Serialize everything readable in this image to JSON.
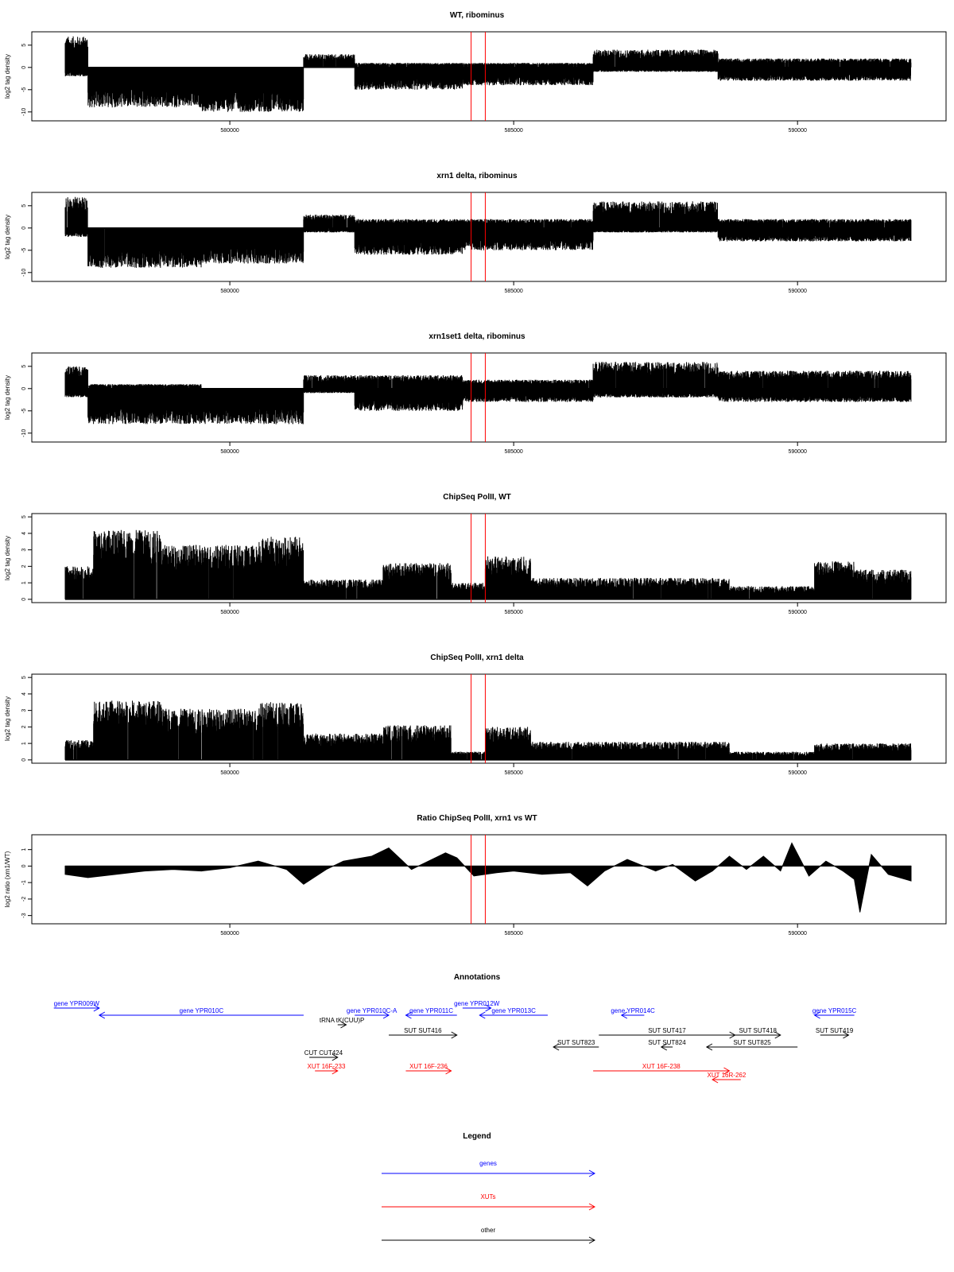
{
  "colors": {
    "genes": "#0000ff",
    "XUTs": "#ff0000",
    "other": "#000000",
    "marker": "#ff0000"
  },
  "genome_range": [
    577000,
    592000
  ],
  "marker_positions": [
    584250,
    584500
  ],
  "chart_data": [
    {
      "type": "bar",
      "title": "WT, ribominus",
      "ylabel": "log2 tag density",
      "ylim": [
        -12,
        8
      ],
      "yticks": [
        5,
        0,
        -5,
        -10
      ],
      "xlim": [
        577100,
        592000
      ],
      "xticks": [
        580000,
        585000,
        590000
      ],
      "profile": [
        {
          "x0": 577100,
          "x1": 577500,
          "hi": 7,
          "lo": -2
        },
        {
          "x0": 577500,
          "x1": 579500,
          "hi": 0,
          "lo": -9
        },
        {
          "x0": 579500,
          "x1": 581300,
          "hi": 0,
          "lo": -10
        },
        {
          "x0": 581300,
          "x1": 582200,
          "hi": 3,
          "lo": 0
        },
        {
          "x0": 582200,
          "x1": 584100,
          "hi": 1,
          "lo": -5
        },
        {
          "x0": 584100,
          "x1": 586400,
          "hi": 1,
          "lo": -4
        },
        {
          "x0": 586400,
          "x1": 588600,
          "hi": 4,
          "lo": -1
        },
        {
          "x0": 588600,
          "x1": 592000,
          "hi": 2,
          "lo": -3
        }
      ]
    },
    {
      "type": "bar",
      "title": "xrn1 delta, ribominus",
      "ylabel": "log2 tag density",
      "ylim": [
        -12,
        8
      ],
      "yticks": [
        5,
        0,
        -5,
        -10
      ],
      "xlim": [
        577100,
        592000
      ],
      "xticks": [
        580000,
        585000,
        590000
      ],
      "profile": [
        {
          "x0": 577100,
          "x1": 577500,
          "hi": 7,
          "lo": -2
        },
        {
          "x0": 577500,
          "x1": 579500,
          "hi": 0,
          "lo": -9
        },
        {
          "x0": 579500,
          "x1": 581300,
          "hi": 0,
          "lo": -8
        },
        {
          "x0": 581300,
          "x1": 582200,
          "hi": 3,
          "lo": -1
        },
        {
          "x0": 582200,
          "x1": 584100,
          "hi": 2,
          "lo": -6
        },
        {
          "x0": 584100,
          "x1": 586400,
          "hi": 2,
          "lo": -5
        },
        {
          "x0": 586400,
          "x1": 588600,
          "hi": 6,
          "lo": -1
        },
        {
          "x0": 588600,
          "x1": 592000,
          "hi": 2,
          "lo": -3
        }
      ]
    },
    {
      "type": "bar",
      "title": "xrn1set1 delta, ribominus",
      "ylabel": "log2 tag density",
      "ylim": [
        -12,
        8
      ],
      "yticks": [
        5,
        0,
        -5,
        -10
      ],
      "xlim": [
        577100,
        592000
      ],
      "xticks": [
        580000,
        585000,
        590000
      ],
      "profile": [
        {
          "x0": 577100,
          "x1": 577500,
          "hi": 5,
          "lo": -2
        },
        {
          "x0": 577500,
          "x1": 579500,
          "hi": 1,
          "lo": -8
        },
        {
          "x0": 579500,
          "x1": 581300,
          "hi": 0,
          "lo": -8
        },
        {
          "x0": 581300,
          "x1": 582200,
          "hi": 3,
          "lo": -1
        },
        {
          "x0": 582200,
          "x1": 584100,
          "hi": 3,
          "lo": -5
        },
        {
          "x0": 584100,
          "x1": 586400,
          "hi": 2,
          "lo": -3
        },
        {
          "x0": 586400,
          "x1": 588600,
          "hi": 6,
          "lo": -2
        },
        {
          "x0": 588600,
          "x1": 592000,
          "hi": 4,
          "lo": -3
        }
      ]
    },
    {
      "type": "bar",
      "title": "ChipSeq PolII, WT",
      "ylabel": "log2 tag density",
      "ylim": [
        -0.2,
        5.2
      ],
      "yticks": [
        0,
        1,
        2,
        3,
        4,
        5
      ],
      "xlim": [
        577100,
        592000
      ],
      "xticks": [
        580000,
        585000,
        590000
      ],
      "profile": [
        {
          "x0": 577100,
          "x1": 577600,
          "hi": 2,
          "lo": 0
        },
        {
          "x0": 577600,
          "x1": 578800,
          "hi": 4.2,
          "lo": 0
        },
        {
          "x0": 578800,
          "x1": 580500,
          "hi": 3.3,
          "lo": 0
        },
        {
          "x0": 580500,
          "x1": 581300,
          "hi": 3.8,
          "lo": 0
        },
        {
          "x0": 581300,
          "x1": 582700,
          "hi": 1.2,
          "lo": 0
        },
        {
          "x0": 582700,
          "x1": 583900,
          "hi": 2.2,
          "lo": 0
        },
        {
          "x0": 583900,
          "x1": 584500,
          "hi": 1,
          "lo": 0
        },
        {
          "x0": 584500,
          "x1": 585300,
          "hi": 2.6,
          "lo": 0
        },
        {
          "x0": 585300,
          "x1": 588800,
          "hi": 1.3,
          "lo": 0
        },
        {
          "x0": 588800,
          "x1": 590300,
          "hi": 0.8,
          "lo": 0
        },
        {
          "x0": 590300,
          "x1": 591000,
          "hi": 2.3,
          "lo": 0
        },
        {
          "x0": 591000,
          "x1": 592000,
          "hi": 1.8,
          "lo": 0
        }
      ]
    },
    {
      "type": "bar",
      "title": "ChipSeq PolII, xrn1 delta",
      "ylabel": "log2 tag density",
      "ylim": [
        -0.2,
        5.2
      ],
      "yticks": [
        0,
        1,
        2,
        3,
        4,
        5
      ],
      "xlim": [
        577100,
        592000
      ],
      "xticks": [
        580000,
        585000,
        590000
      ],
      "profile": [
        {
          "x0": 577100,
          "x1": 577600,
          "hi": 1.2,
          "lo": 0
        },
        {
          "x0": 577600,
          "x1": 578800,
          "hi": 3.6,
          "lo": 0
        },
        {
          "x0": 578800,
          "x1": 580500,
          "hi": 3.1,
          "lo": 0
        },
        {
          "x0": 580500,
          "x1": 581300,
          "hi": 3.5,
          "lo": 0
        },
        {
          "x0": 581300,
          "x1": 582700,
          "hi": 1.6,
          "lo": 0
        },
        {
          "x0": 582700,
          "x1": 583900,
          "hi": 2.1,
          "lo": 0
        },
        {
          "x0": 583900,
          "x1": 584500,
          "hi": 0.5,
          "lo": 0
        },
        {
          "x0": 584500,
          "x1": 585300,
          "hi": 2,
          "lo": 0
        },
        {
          "x0": 585300,
          "x1": 588800,
          "hi": 1.1,
          "lo": 0
        },
        {
          "x0": 588800,
          "x1": 590300,
          "hi": 0.5,
          "lo": 0
        },
        {
          "x0": 590300,
          "x1": 591000,
          "hi": 1,
          "lo": 0
        },
        {
          "x0": 591000,
          "x1": 592000,
          "hi": 1,
          "lo": 0
        }
      ]
    },
    {
      "type": "area",
      "title": "Ratio ChipSeq PolII, xrn1 vs WT",
      "ylabel": "log2 ratio (xrn1/WT)",
      "ylim": [
        -3.5,
        1.9
      ],
      "yticks": [
        1,
        0,
        -1,
        -2,
        -3
      ],
      "xlim": [
        577100,
        592000
      ],
      "xticks": [
        580000,
        585000,
        590000
      ],
      "x": [
        577100,
        577500,
        578000,
        578500,
        579000,
        579500,
        580000,
        580500,
        581000,
        581300,
        581700,
        582000,
        582500,
        582800,
        583200,
        583500,
        583800,
        584000,
        584300,
        584700,
        585000,
        585500,
        586000,
        586300,
        586600,
        587000,
        587500,
        587800,
        588200,
        588500,
        588800,
        589100,
        589400,
        589700,
        589900,
        590200,
        590500,
        590800,
        591000,
        591100,
        591300,
        591600,
        592000
      ],
      "y": [
        -0.5,
        -0.7,
        -0.5,
        -0.3,
        -0.2,
        -0.3,
        -0.1,
        0.3,
        -0.2,
        -1.1,
        -0.2,
        0.3,
        0.6,
        1.1,
        -0.2,
        0.3,
        0.8,
        0.5,
        -0.6,
        -0.4,
        -0.3,
        -0.5,
        -0.4,
        -1.2,
        -0.3,
        0.4,
        -0.3,
        0.1,
        -0.9,
        -0.3,
        0.6,
        -0.2,
        0.6,
        -0.3,
        1.4,
        -0.6,
        0.3,
        -0.3,
        -0.8,
        -2.8,
        0.7,
        -0.5,
        -0.9
      ]
    }
  ],
  "annotations": {
    "title": "Annotations",
    "features": [
      {
        "label": "gene YPR009W",
        "kind": "genes",
        "x0": 576900,
        "x1": 577700,
        "dir": "right",
        "row": 0
      },
      {
        "label": "gene YPR010C",
        "kind": "genes",
        "x0": 577700,
        "x1": 581300,
        "dir": "left",
        "row": 1
      },
      {
        "label": "gene YPR010C-A",
        "kind": "genes",
        "x0": 582200,
        "x1": 582800,
        "dir": "right",
        "row": 1
      },
      {
        "label": "gene YPR011C",
        "kind": "genes",
        "x0": 583100,
        "x1": 584000,
        "dir": "left",
        "row": 1
      },
      {
        "label": "gene YPR012W",
        "kind": "genes",
        "x0": 584100,
        "x1": 584600,
        "dir": "right",
        "row": 0
      },
      {
        "label": "gene YPR013C",
        "kind": "genes",
        "x0": 584400,
        "x1": 585600,
        "dir": "left",
        "row": 1
      },
      {
        "label": "gene YPR014C",
        "kind": "genes",
        "x0": 586900,
        "x1": 587300,
        "dir": "left",
        "row": 1
      },
      {
        "label": "gene YPR015C",
        "kind": "genes",
        "x0": 590300,
        "x1": 591000,
        "dir": "left",
        "row": 1
      },
      {
        "label": "tRNA tK(CUU)P",
        "kind": "other",
        "x0": 581900,
        "x1": 582050,
        "dir": "right",
        "row": 2
      },
      {
        "label": "SUT SUT416",
        "kind": "other",
        "x0": 582800,
        "x1": 584000,
        "dir": "right",
        "row": 3
      },
      {
        "label": "SUT SUT823",
        "kind": "other",
        "x0": 585700,
        "x1": 586500,
        "dir": "left",
        "row": 4
      },
      {
        "label": "SUT SUT417",
        "kind": "other",
        "x0": 586500,
        "x1": 588900,
        "dir": "right",
        "row": 3
      },
      {
        "label": "SUT SUT824",
        "kind": "other",
        "x0": 587600,
        "x1": 587800,
        "dir": "left",
        "row": 4
      },
      {
        "label": "SUT SUT418",
        "kind": "other",
        "x0": 588900,
        "x1": 589700,
        "dir": "right",
        "row": 3
      },
      {
        "label": "SUT SUT825",
        "kind": "other",
        "x0": 588400,
        "x1": 590000,
        "dir": "left",
        "row": 4
      },
      {
        "label": "SUT SUT419",
        "kind": "other",
        "x0": 590400,
        "x1": 590900,
        "dir": "right",
        "row": 3
      },
      {
        "label": "CUT CUT424",
        "kind": "other",
        "x0": 581400,
        "x1": 581900,
        "dir": "right",
        "row": 5
      },
      {
        "label": "XUT 16F-233",
        "kind": "XUTs",
        "x0": 581500,
        "x1": 581900,
        "dir": "right",
        "row": 6
      },
      {
        "label": "XUT 16F-236",
        "kind": "XUTs",
        "x0": 583100,
        "x1": 583900,
        "dir": "right",
        "row": 6
      },
      {
        "label": "XUT 16F-238",
        "kind": "XUTs",
        "x0": 586400,
        "x1": 588800,
        "dir": "right",
        "row": 6
      },
      {
        "label": "XUT 16R-262",
        "kind": "XUTs",
        "x0": 588500,
        "x1": 589000,
        "dir": "left",
        "row": 7
      }
    ]
  },
  "legend": {
    "title": "Legend",
    "items": [
      {
        "label": "genes",
        "kind": "genes"
      },
      {
        "label": "XUTs",
        "kind": "XUTs"
      },
      {
        "label": "other",
        "kind": "other"
      }
    ]
  }
}
